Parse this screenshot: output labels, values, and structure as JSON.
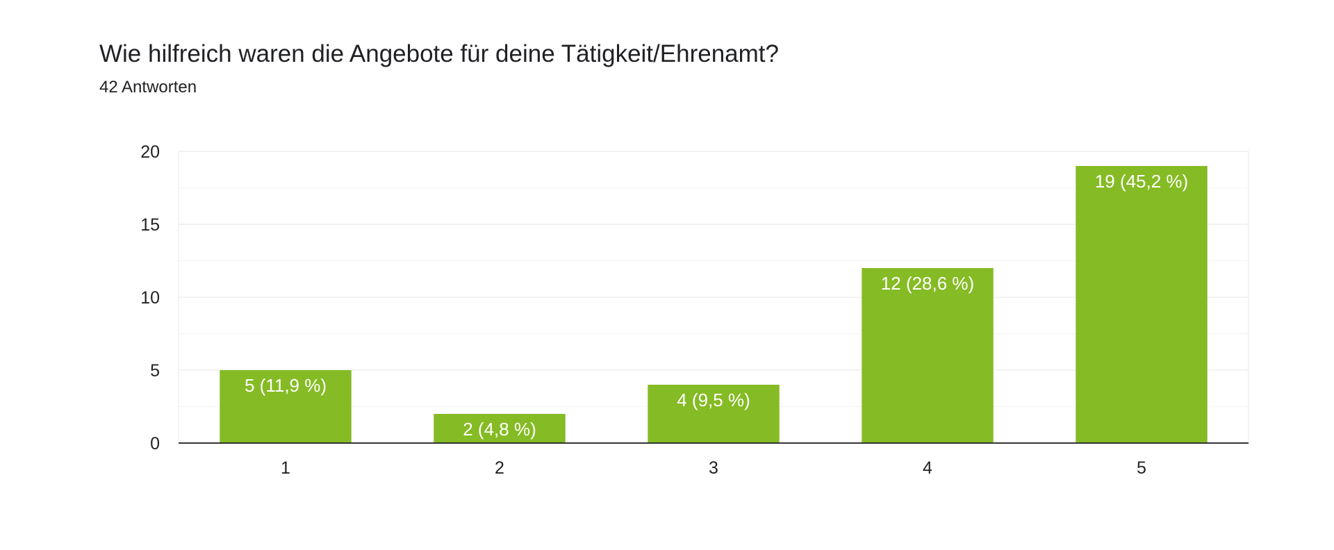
{
  "header": {
    "question": "Wie hilfreich waren die Angebote für deine Tätigkeit/Ehrenamt?",
    "responses": "42 Antworten"
  },
  "chart_data": {
    "type": "bar",
    "title": "Wie hilfreich waren die Angebote für deine Tätigkeit/Ehrenamt?",
    "subtitle": "42 Antworten",
    "categories": [
      "1",
      "2",
      "3",
      "4",
      "5"
    ],
    "values": [
      5,
      2,
      4,
      12,
      19
    ],
    "data_labels": [
      "5 (11,9 %)",
      "2 (4,8 %)",
      "4 (9,5 %)",
      "12 (28,6 %)",
      "19 (45,2 %)"
    ],
    "xlabel": "",
    "ylabel": "",
    "ylim": [
      0,
      20
    ],
    "yticks": [
      0,
      5,
      10,
      15,
      20
    ],
    "grid": true,
    "legend": "none",
    "bar_color": "#85bb24"
  }
}
